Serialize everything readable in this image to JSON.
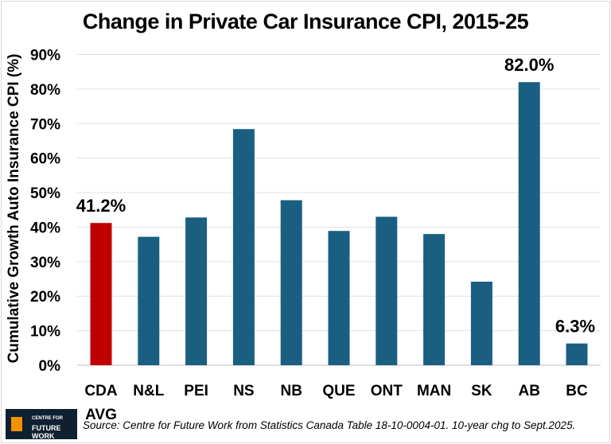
{
  "chart_data": {
    "type": "bar",
    "title": "Change in Private Car Insurance CPI, 2015-25",
    "ylabel": "Cumulative Growth Auto Insurance CPI (%)",
    "xlabel": "",
    "categories": [
      "CDA AVG",
      "N&L",
      "PEI",
      "NS",
      "NB",
      "QUE",
      "ONT",
      "MAN",
      "SK",
      "AB",
      "BC"
    ],
    "values": [
      41.2,
      37.2,
      42.8,
      68.4,
      47.8,
      38.9,
      43.0,
      38.0,
      24.2,
      82.0,
      6.3
    ],
    "data_labels": {
      "CDA AVG": "41.2%",
      "AB": "82.0%",
      "BC": "6.3%"
    },
    "yticks": [
      "0%",
      "10%",
      "20%",
      "30%",
      "40%",
      "50%",
      "60%",
      "70%",
      "80%",
      "90%"
    ],
    "ylim": [
      0,
      90
    ],
    "grid": true,
    "colors": {
      "highlight": "#c00000",
      "default": "#1a5f82"
    },
    "highlight_category": "CDA AVG"
  },
  "footer": {
    "source": "Source: Centre for Future Work from Statistics Canada Table 18-10-0004-01. 10-year chg to Sept.2025.",
    "logo_line1": "CENTRE FOR",
    "logo_line2": "FUTURE WORK"
  }
}
